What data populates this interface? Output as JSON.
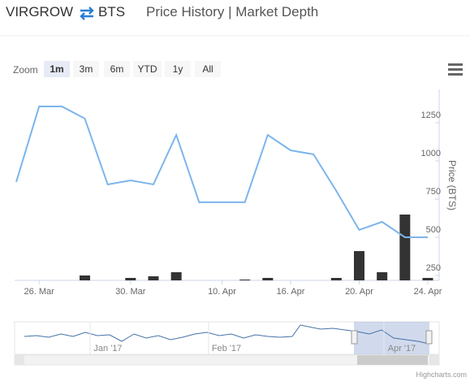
{
  "header": {
    "base": "VIRGROW",
    "quote": "BTS",
    "tabs": "Price History | Market Depth"
  },
  "chart_data": {
    "type": "line",
    "range_selector": {
      "label": "Zoom",
      "buttons": [
        "1m",
        "3m",
        "6m",
        "YTD",
        "1y",
        "All"
      ],
      "selected": "1m",
      "disabled": [
        "6m",
        "1y"
      ]
    },
    "y_axis_title": "Price (BTS)",
    "categories": [
      null,
      "26. Mar",
      null,
      null,
      null,
      "30. Mar",
      null,
      null,
      null,
      "10. Apr",
      null,
      null,
      "16. Apr",
      null,
      null,
      "20. Apr",
      null,
      null,
      "24. Apr"
    ],
    "series": [
      {
        "name": "Price",
        "type": "line",
        "color": "#7cb5ec",
        "values": [
          862,
          1356,
          1356,
          1277,
          846,
          872,
          846,
          1170,
          729,
          729,
          729,
          1170,
          1069,
          1043,
          803,
          548,
          601,
          500,
          500
        ]
      },
      {
        "name": "Volume",
        "type": "bar",
        "axis": "y2",
        "color": "#333333",
        "values": [
          0,
          0,
          0,
          6,
          0,
          3,
          5,
          10,
          0,
          0,
          1,
          3,
          0,
          0,
          3,
          36,
          10,
          81,
          3
        ]
      }
    ],
    "ylim": [
      218,
      1468
    ],
    "yticks": [
      250,
      500,
      750,
      1000,
      1250
    ],
    "y2lim": [
      0,
      235
    ],
    "navigator": {
      "labels": [
        "Jan '17",
        "Feb '17",
        "Apr '17"
      ]
    },
    "credits": "Highcharts.com"
  }
}
